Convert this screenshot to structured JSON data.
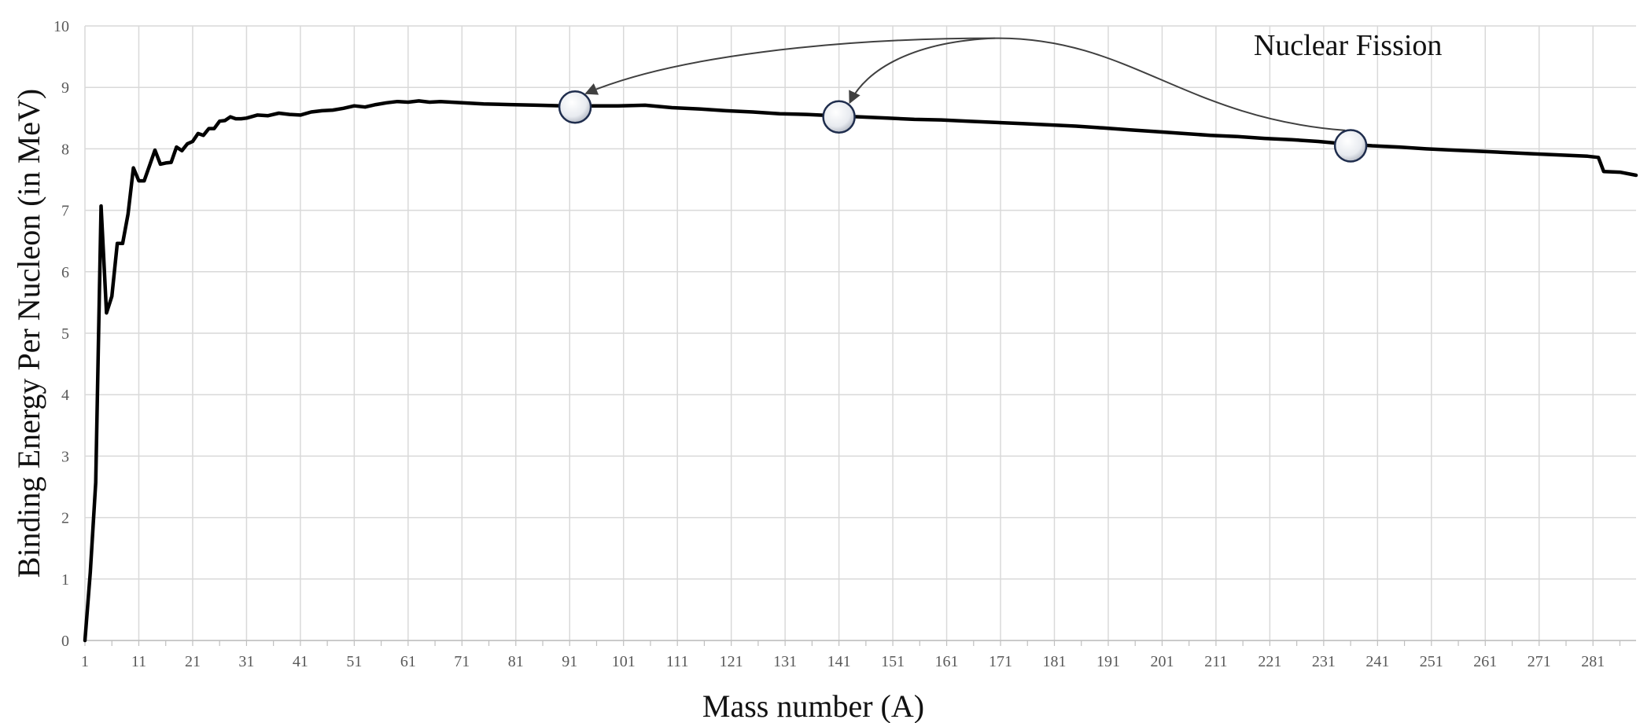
{
  "chart_data": {
    "type": "line",
    "title": "",
    "xlabel": "Mass number (A)",
    "ylabel": "Binding Energy Per Nucleon (in MeV)",
    "xlim": [
      1,
      289
    ],
    "ylim": [
      0,
      10
    ],
    "grid": true,
    "x_ticks": [
      1,
      11,
      21,
      31,
      41,
      51,
      61,
      71,
      81,
      91,
      101,
      111,
      121,
      131,
      141,
      151,
      161,
      171,
      181,
      191,
      201,
      211,
      221,
      231,
      241,
      251,
      261,
      271,
      281
    ],
    "y_ticks": [
      0,
      1,
      2,
      3,
      4,
      5,
      6,
      7,
      8,
      9,
      10
    ],
    "colors": {
      "line": "#000000",
      "grid": "#d9d9d9",
      "arrow": "#404040",
      "marker_fill": "#e8ebf0",
      "marker_edge": "#1f2d4d"
    },
    "series": [
      {
        "x": [
          1,
          2,
          3,
          4,
          5,
          6,
          7,
          8,
          9,
          10,
          11,
          12,
          13,
          14,
          15,
          16,
          17,
          18,
          19,
          20,
          21,
          22,
          23,
          24,
          25,
          26,
          27,
          28,
          29,
          30,
          31,
          33,
          35,
          37,
          39,
          41,
          43,
          45,
          47,
          49,
          51,
          53,
          55,
          57,
          59,
          61,
          63,
          65,
          67,
          69,
          71,
          75,
          80,
          85,
          90,
          95,
          100,
          105,
          110,
          115,
          120,
          125,
          130,
          135,
          140,
          145,
          150,
          155,
          160,
          165,
          170,
          175,
          180,
          185,
          190,
          195,
          200,
          205,
          210,
          215,
          220,
          225,
          230,
          235,
          240,
          245,
          250,
          255,
          260,
          265,
          270,
          275,
          280,
          282,
          283,
          286,
          289
        ],
        "y": [
          0.0,
          1.11,
          2.57,
          7.07,
          5.33,
          5.6,
          6.46,
          6.46,
          6.94,
          7.69,
          7.48,
          7.48,
          7.73,
          7.98,
          7.75,
          7.77,
          7.78,
          8.03,
          7.97,
          8.08,
          8.12,
          8.25,
          8.22,
          8.33,
          8.33,
          8.45,
          8.46,
          8.52,
          8.49,
          8.49,
          8.5,
          8.55,
          8.54,
          8.58,
          8.56,
          8.55,
          8.6,
          8.62,
          8.63,
          8.66,
          8.7,
          8.68,
          8.72,
          8.75,
          8.77,
          8.76,
          8.78,
          8.76,
          8.77,
          8.76,
          8.75,
          8.73,
          8.72,
          8.71,
          8.7,
          8.7,
          8.7,
          8.71,
          8.67,
          8.65,
          8.62,
          8.6,
          8.57,
          8.56,
          8.54,
          8.52,
          8.5,
          8.48,
          8.47,
          8.45,
          8.43,
          8.41,
          8.39,
          8.37,
          8.34,
          8.31,
          8.28,
          8.25,
          8.22,
          8.2,
          8.17,
          8.15,
          8.12,
          8.08,
          8.05,
          8.03,
          8.0,
          7.98,
          7.96,
          7.94,
          7.92,
          7.9,
          7.88,
          7.86,
          7.63,
          7.62,
          7.57
        ]
      }
    ],
    "markers": [
      {
        "x": 92,
        "y": 8.68
      },
      {
        "x": 141,
        "y": 8.52
      },
      {
        "x": 236,
        "y": 8.05
      }
    ],
    "annotations": [
      {
        "text": "Nuclear Fission",
        "x": 218,
        "y": 9.5
      }
    ],
    "arrows": [
      {
        "from": [
          235,
          8.3
        ],
        "via": [
          170,
          9.8
        ],
        "to": [
          94,
          8.9
        ]
      },
      {
        "from": [
          170,
          9.8
        ],
        "to": [
          143,
          8.75
        ]
      }
    ]
  }
}
